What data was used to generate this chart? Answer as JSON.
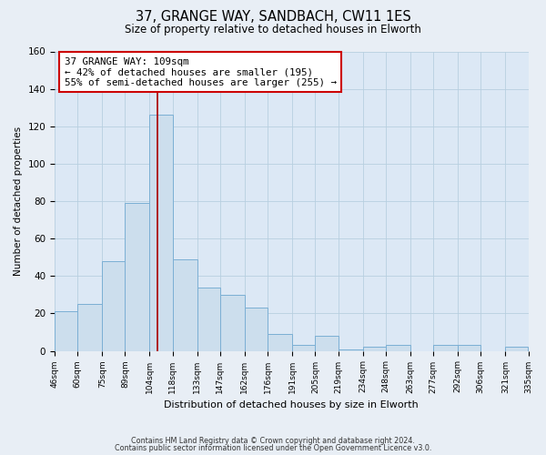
{
  "title": "37, GRANGE WAY, SANDBACH, CW11 1ES",
  "subtitle": "Size of property relative to detached houses in Elworth",
  "xlabel": "Distribution of detached houses by size in Elworth",
  "ylabel": "Number of detached properties",
  "bin_edges": [
    46,
    60,
    75,
    89,
    104,
    118,
    133,
    147,
    162,
    176,
    191,
    205,
    219,
    234,
    248,
    263,
    277,
    292,
    306,
    321,
    335
  ],
  "bar_heights": [
    21,
    25,
    48,
    79,
    126,
    49,
    34,
    30,
    23,
    9,
    3,
    8,
    1,
    2,
    3,
    0,
    3,
    3,
    0,
    2
  ],
  "bar_color": "#ccdeed",
  "bar_edge_color": "#7bafd4",
  "property_size": 109,
  "vline_color": "#aa0000",
  "annotation_box_edge": "#cc0000",
  "annotation_text_line1": "37 GRANGE WAY: 109sqm",
  "annotation_text_line2": "← 42% of detached houses are smaller (195)",
  "annotation_text_line3": "55% of semi-detached houses are larger (255) →",
  "ylim": [
    0,
    160
  ],
  "yticks": [
    0,
    20,
    40,
    60,
    80,
    100,
    120,
    140,
    160
  ],
  "tick_labels": [
    "46sqm",
    "60sqm",
    "75sqm",
    "89sqm",
    "104sqm",
    "118sqm",
    "133sqm",
    "147sqm",
    "162sqm",
    "176sqm",
    "191sqm",
    "205sqm",
    "219sqm",
    "234sqm",
    "248sqm",
    "263sqm",
    "277sqm",
    "292sqm",
    "306sqm",
    "321sqm",
    "335sqm"
  ],
  "footer_line1": "Contains HM Land Registry data © Crown copyright and database right 2024.",
  "footer_line2": "Contains public sector information licensed under the Open Government Licence v3.0.",
  "background_color": "#e8eef5",
  "plot_bg_color": "#dce8f5"
}
